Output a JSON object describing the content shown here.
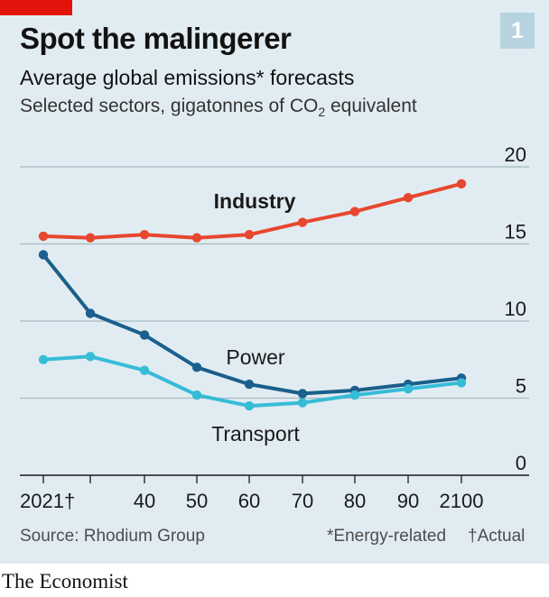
{
  "header": {
    "chart_number": "1",
    "title": "Spot the malingerer",
    "subtitle": "Average global emissions* forecasts",
    "unit_note_prefix": "Selected sectors, gigatonnes of CO",
    "unit_note_subscript": "2",
    "unit_note_suffix": " equivalent"
  },
  "footer": {
    "source": "Source: Rhodium Group",
    "note_energy": "*Energy-related",
    "note_actual": "†Actual",
    "brand": "The Economist"
  },
  "colors": {
    "background": "#e1ecf2",
    "red_tag": "#e3120b",
    "industry": "#e8472f",
    "power": "#1b5f8c",
    "transport": "#36bcd7",
    "grid": "#a7b8c2",
    "axis": "#1a1a1a"
  },
  "chart_data": {
    "type": "line",
    "title": "Spot the malingerer",
    "x": [
      2021,
      2030,
      2040,
      2050,
      2060,
      2070,
      2080,
      2090,
      2100
    ],
    "x_tick_labels": [
      "2021†",
      "",
      "40",
      "50",
      "60",
      "70",
      "80",
      "90",
      "2100"
    ],
    "y_ticks": [
      0,
      5,
      10,
      15,
      20
    ],
    "ylim": [
      0,
      20
    ],
    "xlabel": "",
    "ylabel": "",
    "grid": true,
    "series": [
      {
        "name": "Industry",
        "color": "#e8472f",
        "values": [
          15.5,
          15.4,
          15.6,
          15.4,
          15.6,
          16.4,
          17.1,
          18.0,
          18.9
        ]
      },
      {
        "name": "Power",
        "color": "#1b5f8c",
        "values": [
          14.3,
          10.5,
          9.1,
          7.0,
          5.9,
          5.3,
          5.5,
          5.9,
          6.3
        ]
      },
      {
        "name": "Transport",
        "color": "#36bcd7",
        "values": [
          7.5,
          7.7,
          6.8,
          5.2,
          4.5,
          4.7,
          5.2,
          5.6,
          6.0
        ]
      }
    ]
  }
}
